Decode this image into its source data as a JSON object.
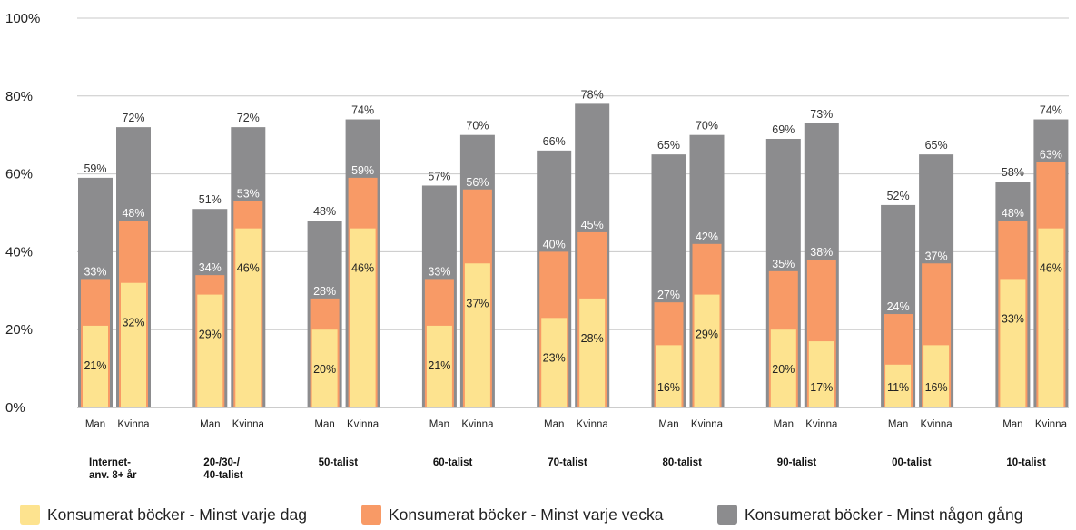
{
  "chart_data": {
    "type": "bar",
    "stacking": "overlay",
    "y_ticks": [
      "0%",
      "20%",
      "40%",
      "60%",
      "80%",
      "100%"
    ],
    "ylim": [
      0,
      100
    ],
    "grid": true,
    "legend_position": "bottom",
    "groups": [
      {
        "label": "Internet-\nanv. 8+ år"
      },
      {
        "label": "20-/30-/\n40-talist"
      },
      {
        "label": "50-talist"
      },
      {
        "label": "60-talist"
      },
      {
        "label": "70-talist"
      },
      {
        "label": "80-talist"
      },
      {
        "label": "90-talist"
      },
      {
        "label": "00-talist"
      },
      {
        "label": "10-talist"
      }
    ],
    "sub_categories": [
      "Man",
      "Kvinna"
    ],
    "series": [
      {
        "name": "Konsumerat böcker - Minst någon gång",
        "color": "#8c8c8e",
        "values": [
          [
            59,
            72
          ],
          [
            51,
            72
          ],
          [
            48,
            74
          ],
          [
            57,
            70
          ],
          [
            66,
            78
          ],
          [
            65,
            70
          ],
          [
            69,
            73
          ],
          [
            52,
            65
          ],
          [
            58,
            74
          ]
        ]
      },
      {
        "name": "Konsumerat böcker - Minst varje vecka",
        "color": "#f89a66",
        "values": [
          [
            33,
            48
          ],
          [
            34,
            53
          ],
          [
            28,
            59
          ],
          [
            33,
            56
          ],
          [
            40,
            45
          ],
          [
            27,
            42
          ],
          [
            35,
            38
          ],
          [
            24,
            37
          ],
          [
            48,
            63
          ]
        ]
      },
      {
        "name": "Konsumerat böcker - Minst varje dag",
        "color": "#fde38f",
        "values": [
          [
            21,
            32
          ],
          [
            29,
            46
          ],
          [
            20,
            46
          ],
          [
            21,
            37
          ],
          [
            23,
            28
          ],
          [
            16,
            29
          ],
          [
            20,
            17
          ],
          [
            11,
            16
          ],
          [
            33,
            46
          ]
        ]
      }
    ],
    "legend": [
      {
        "name": "Konsumerat böcker - Minst varje dag",
        "color": "#fde38f"
      },
      {
        "name": "Konsumerat böcker - Minst varje vecka",
        "color": "#f89a66"
      },
      {
        "name": "Konsumerat böcker - Minst någon gång",
        "color": "#8c8c8e"
      }
    ]
  }
}
